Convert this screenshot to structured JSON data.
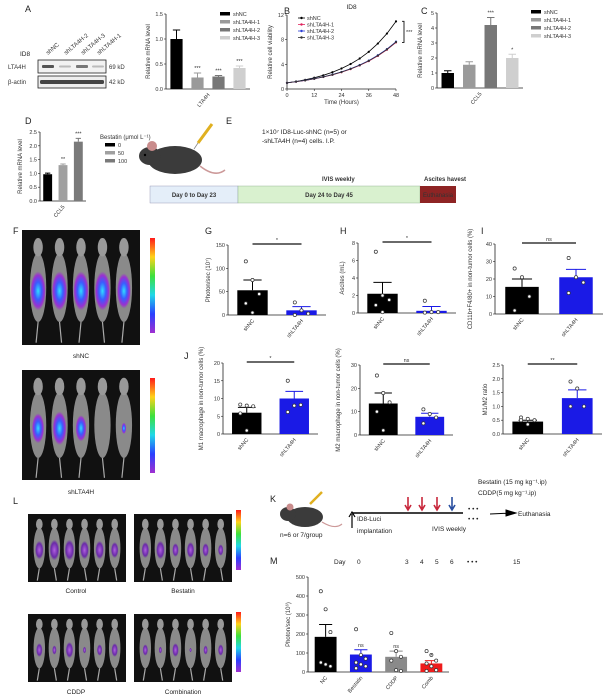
{
  "panel_labels": {
    "A": "A",
    "B": "B",
    "C": "C",
    "D": "D",
    "E": "E",
    "F": "F",
    "G": "G",
    "H": "H",
    "I": "I",
    "J": "J",
    "K": "K",
    "L": "L",
    "M": "M"
  },
  "blot": {
    "cell_line": "ID8",
    "lanes": [
      "shNC",
      "shLTA4H-2",
      "shLTA4H-3",
      "shLTA4H-1"
    ],
    "rows": [
      {
        "label": "LTA4H",
        "size": "69 kD"
      },
      {
        "label": "β-actin",
        "size": "42 kD"
      }
    ]
  },
  "panel_e": {
    "injection_line1": "1×10⁷ ID8-Luc-shNC (n=5) or",
    "injection_line2": "-shLTA4H (n=4) cells. I.P.",
    "ivis": "IVIS weekly",
    "ascites": "Ascites havest",
    "timeline": [
      "Day 0 to Day 23",
      "Day 24 to Day 45",
      "Euthanasia"
    ],
    "timeline_colors": [
      "#e4eef9",
      "#d9f1cf",
      "#8e2424"
    ]
  },
  "panel_f": {
    "labels": [
      "shNC",
      "shLTA4H"
    ]
  },
  "panel_l": {
    "labels": [
      "Control",
      "Bestatin",
      "CDDP",
      "Combination"
    ]
  },
  "panel_k": {
    "group_size": "n=6 or 7/group",
    "implant_line1": "ID8-Luci",
    "implant_line2": "implantation",
    "ivis": "IVIS weekly",
    "end": "Euthanasia",
    "bestatin": "Bestatin (15 mg kg⁻¹.ip)",
    "cddp": "CDDP(5 mg kg⁻¹.ip)",
    "bestatin_color": "#c8283c",
    "cddp_color": "#2a4fa0",
    "dots": "• • •",
    "day_label": "Day",
    "days": [
      "0",
      "3",
      "4",
      "5",
      "6",
      "• • •",
      "15"
    ]
  },
  "chart_data": [
    {
      "id": "A",
      "type": "bar",
      "group": "LTA4H",
      "series_names": [
        "shNC",
        "shLTA4H-1",
        "shLTA4H-2",
        "shLTA4H-3"
      ],
      "values": [
        1.0,
        0.23,
        0.25,
        0.42
      ],
      "errors": [
        0.18,
        0.09,
        0.02,
        0.04
      ],
      "sig": [
        "",
        "***",
        "***",
        "***"
      ],
      "colors": [
        "#000000",
        "#9a9a9a",
        "#777777",
        "#cfcfcf"
      ],
      "ylabel": "Relative mRNA level",
      "ylim": [
        0,
        1.5
      ],
      "yticks": [
        "0.0",
        "0.5",
        "1.0",
        "1.5"
      ],
      "legend": "top-right"
    },
    {
      "id": "B",
      "type": "line",
      "title": "ID8",
      "xlabel": "Time (Hours)",
      "ylabel": "Relative cell viability",
      "xlim": [
        0,
        48
      ],
      "ylim": [
        0,
        12
      ],
      "xticks": [
        "0",
        "12",
        "24",
        "36",
        "48"
      ],
      "yticks": [
        "0",
        "4",
        "8",
        "12"
      ],
      "sig": "***",
      "legend": "top-left",
      "x": [
        0,
        4,
        8,
        12,
        16,
        20,
        24,
        28,
        32,
        36,
        40,
        44,
        48
      ],
      "series": [
        {
          "name": "shNC",
          "color": "#000000",
          "values": [
            1,
            1.22,
            1.49,
            1.82,
            2.22,
            2.72,
            3.32,
            4.05,
            4.94,
            6.03,
            7.37,
            8.99,
            10.97
          ]
        },
        {
          "name": "shLTA4H-1",
          "color": "#e0245e",
          "values": [
            1,
            1.18,
            1.39,
            1.64,
            1.94,
            2.3,
            2.72,
            3.22,
            3.82,
            4.52,
            5.36,
            6.36,
            7.55
          ]
        },
        {
          "name": "shLTA4H-2",
          "color": "#2b3fd6",
          "values": [
            1,
            1.19,
            1.41,
            1.67,
            1.97,
            2.34,
            2.77,
            3.29,
            3.89,
            4.61,
            5.47,
            6.48,
            7.68
          ]
        },
        {
          "name": "shLTA4H-3",
          "color": "#333333",
          "values": [
            1,
            1.19,
            1.4,
            1.66,
            1.96,
            2.32,
            2.75,
            3.26,
            3.86,
            4.57,
            5.42,
            6.42,
            7.62
          ]
        }
      ]
    },
    {
      "id": "C",
      "type": "bar",
      "group": "CCL5",
      "series_names": [
        "shNC",
        "shLTA4H-1",
        "shLTA4H-2",
        "shLTA4H-3"
      ],
      "values": [
        1.0,
        1.55,
        4.2,
        2.0
      ],
      "errors": [
        0.15,
        0.2,
        0.5,
        0.25
      ],
      "sig": [
        "",
        "",
        "***",
        "*"
      ],
      "colors": [
        "#000000",
        "#9a9a9a",
        "#777777",
        "#cfcfcf"
      ],
      "ylabel": "Relative mRNA level",
      "ylim": [
        0,
        5
      ],
      "yticks": [
        "0",
        "1",
        "2",
        "3",
        "4",
        "5"
      ],
      "legend": "top-right"
    },
    {
      "id": "D",
      "type": "bar",
      "group": "CCL5",
      "series_names": [
        "0",
        "50",
        "100"
      ],
      "legend_title": "Bestatin (μmol L⁻¹)",
      "values": [
        0.97,
        1.3,
        2.15
      ],
      "errors": [
        0.04,
        0.04,
        0.12
      ],
      "sig": [
        "",
        "**",
        "***"
      ],
      "colors": [
        "#000000",
        "#a0a0a0",
        "#7a7a7a"
      ],
      "ylabel": "Relative mRNA level",
      "ylim": [
        0,
        2.5
      ],
      "yticks": [
        "0.0",
        "0.5",
        "1.0",
        "1.5",
        "2.0",
        "2.5"
      ],
      "legend": "right"
    },
    {
      "id": "G",
      "type": "bar",
      "categories": [
        "shNC",
        "shLTA4H"
      ],
      "values": [
        53,
        10
      ],
      "errors": [
        22,
        8
      ],
      "points": [
        [
          115,
          75,
          45,
          25,
          5
        ],
        [
          27,
          10,
          3,
          0
        ]
      ],
      "compare": "*",
      "colors": [
        "#000000",
        "#1a1ae6"
      ],
      "ylabel": "Photon/sec (10⁷)",
      "ylim": [
        0,
        150
      ],
      "yticks": [
        "0",
        "50",
        "100",
        "150"
      ]
    },
    {
      "id": "H",
      "type": "bar",
      "categories": [
        "shNC",
        "shLTA4H"
      ],
      "values": [
        2.2,
        0.25
      ],
      "errors": [
        1.3,
        0.5
      ],
      "points": [
        [
          7,
          2,
          1.5,
          0.9,
          0.1
        ],
        [
          1.4,
          0.1,
          0.1,
          0.05
        ]
      ],
      "compare": "*",
      "colors": [
        "#000000",
        "#1a1ae6"
      ],
      "ylabel": "Ascites (mL)",
      "ylim": [
        0,
        8
      ],
      "yticks": [
        "0",
        "2",
        "4",
        "6",
        "8"
      ]
    },
    {
      "id": "I",
      "type": "bar",
      "categories": [
        "shNC",
        "shLTA4H"
      ],
      "values": [
        15.5,
        21
      ],
      "errors": [
        4.5,
        4.5
      ],
      "points": [
        [
          26,
          21,
          10,
          2
        ],
        [
          32,
          21,
          18,
          12
        ]
      ],
      "compare": "ns",
      "colors": [
        "#000000",
        "#1a1ae6"
      ],
      "ylabel": "CD11b+F4/80+ in non-tumor cells (%)",
      "ylim": [
        0,
        40
      ],
      "yticks": [
        "0",
        "10",
        "20",
        "30",
        "40"
      ]
    },
    {
      "id": "J1",
      "type": "bar",
      "categories": [
        "shNC",
        "shLTA4H"
      ],
      "values": [
        6,
        10
      ],
      "errors": [
        1.5,
        2
      ],
      "points": [
        [
          8.3,
          8,
          7.8,
          5.8,
          1
        ],
        [
          15,
          8,
          8.2,
          6.2
        ]
      ],
      "compare": "*",
      "colors": [
        "#000000",
        "#1a1ae6"
      ],
      "ylabel": "M1 macrophage in non-tumor cells (%)",
      "ylim": [
        0,
        20
      ],
      "yticks": [
        "0",
        "5",
        "10",
        "15",
        "20"
      ]
    },
    {
      "id": "J2",
      "type": "bar",
      "categories": [
        "shNC",
        "shLTA4H"
      ],
      "values": [
        13.5,
        7.8
      ],
      "errors": [
        4.5,
        1.5
      ],
      "points": [
        [
          25.5,
          18,
          14,
          10,
          2
        ],
        [
          11,
          9,
          7.5,
          5
        ]
      ],
      "compare": "ns",
      "colors": [
        "#000000",
        "#1a1ae6"
      ],
      "ylabel": "M2 macrophage in non-tumor cells (%)",
      "ylim": [
        0,
        30
      ],
      "yticks": [
        "0",
        "10",
        "20",
        "30"
      ]
    },
    {
      "id": "J3",
      "type": "bar",
      "categories": [
        "shNC",
        "shLTA4H"
      ],
      "values": [
        0.45,
        1.3
      ],
      "errors": [
        0.05,
        0.3
      ],
      "points": [
        [
          0.6,
          0.55,
          0.5,
          0.5,
          0.35
        ],
        [
          1.9,
          1.65,
          1.0,
          1.0
        ]
      ],
      "compare": "**",
      "colors": [
        "#000000",
        "#1a1ae6"
      ],
      "ylabel": "M1/M2 ratio",
      "ylim": [
        0,
        2.5
      ],
      "yticks": [
        "0.0",
        "0.5",
        "1.0",
        "1.5",
        "2.0",
        "2.5"
      ]
    },
    {
      "id": "M",
      "type": "bar",
      "categories": [
        "NC",
        "Bestatin",
        "CDDP",
        "Comb"
      ],
      "values": [
        185,
        92,
        80,
        45
      ],
      "errors": [
        65,
        25,
        30,
        15
      ],
      "points": [
        [
          425,
          330,
          210,
          50,
          40,
          30
        ],
        [
          225,
          90,
          70,
          50,
          40,
          30,
          20
        ],
        [
          205,
          110,
          80,
          60,
          10,
          5
        ],
        [
          110,
          90,
          60,
          45,
          30,
          10,
          5
        ]
      ],
      "sig": [
        "",
        "ns",
        "ns",
        "*"
      ],
      "colors": [
        "#000000",
        "#1a1ae6",
        "#8a8a8a",
        "#ee1c1c"
      ],
      "ylabel": "Photon/sec (10⁶)",
      "ylim": [
        0,
        500
      ],
      "yticks": [
        "0",
        "100",
        "200",
        "300",
        "400",
        "500"
      ]
    }
  ]
}
